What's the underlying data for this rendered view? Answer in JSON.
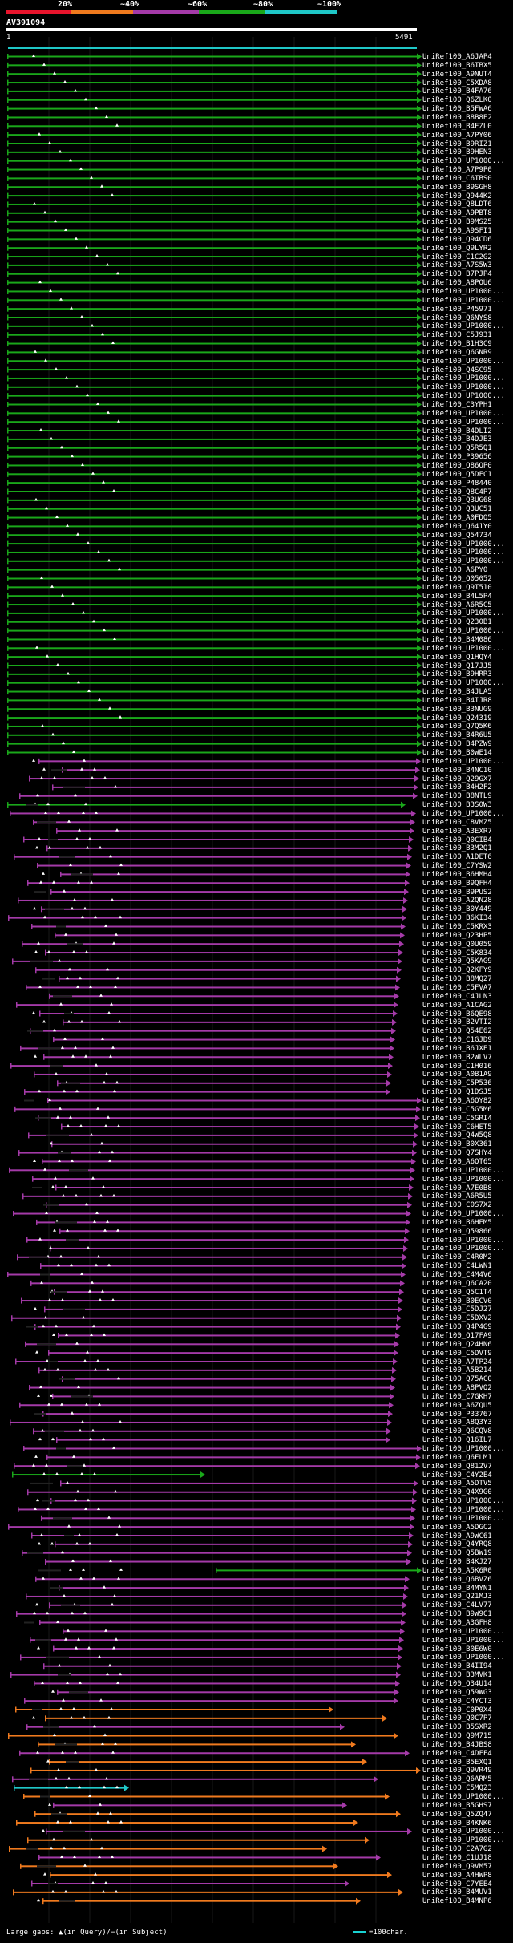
{
  "legend": {
    "labels": [
      "20%",
      "~40%",
      "~60%",
      "~80%",
      "~100%"
    ],
    "colors": [
      "#e8142c",
      "#f07a1e",
      "#a43aa8",
      "#1aa81a",
      "#1fc8c8"
    ]
  },
  "query": {
    "title": "AV391094",
    "start_label": "1",
    "end_label": "5491"
  },
  "hits": [
    "UniRef100_A6JAP4",
    "UniRef100_B6TBX5",
    "UniRef100_A9NUT4",
    "UniRef100_C5XDA8",
    "UniRef100_B4FA76",
    "UniRef100_Q6ZLK0",
    "UniRef100_B5FWA6",
    "UniRef100_B8B8E2",
    "UniRef100_B4FZL0",
    "UniRef100_A7PY06",
    "UniRef100_B9RIZ1",
    "UniRef100_B9HEN3",
    "UniRef100_UP1000...",
    "UniRef100_A7P9P0",
    "UniRef100_C6TBS0",
    "UniRef100_B9SGH8",
    "UniRef100_Q944K2",
    "UniRef100_Q8LDT6",
    "UniRef100_A9PBT8",
    "UniRef100_B9MS25",
    "UniRef100_A9SFI1",
    "UniRef100_Q94CD6",
    "UniRef100_Q9LYR2",
    "UniRef100_C1C2G2",
    "UniRef100_A7S5W3",
    "UniRef100_B7PJP4",
    "UniRef100_A8PQU6",
    "UniRef100_UP1000...",
    "UniRef100_UP1000...",
    "UniRef100_P45971",
    "UniRef100_Q6NYS8",
    "UniRef100_UP1000...",
    "UniRef100_C5J931",
    "UniRef100_B1H3C9",
    "UniRef100_Q6GNR9",
    "UniRef100_UP1000...",
    "UniRef100_Q4SC95",
    "UniRef100_UP1000...",
    "UniRef100_UP1000...",
    "UniRef100_UP1000...",
    "UniRef100_C3YPH1",
    "UniRef100_UP1000...",
    "UniRef100_UP1000...",
    "UniRef100_B4DLI2",
    "UniRef100_B4DJE3",
    "UniRef100_Q5R5Q1",
    "UniRef100_P39656",
    "UniRef100_Q86QP0",
    "UniRef100_Q5DFC1",
    "UniRef100_P48440",
    "UniRef100_Q8C4P7",
    "UniRef100_Q3UG68",
    "UniRef100_Q3UC51",
    "UniRef100_A0FDQ5",
    "UniRef100_Q641Y0",
    "UniRef100_Q54734",
    "UniRef100_UP1000...",
    "UniRef100_UP1000...",
    "UniRef100_UP1000...",
    "UniRef100_A6PY0",
    "UniRef100_Q05052",
    "UniRef100_Q9T510",
    "UniRef100_B4L5P4",
    "UniRef100_A6R5C5",
    "UniRef100_UP1000...",
    "UniRef100_Q230B1",
    "UniRef100_UP1000...",
    "UniRef100_B4M086",
    "UniRef100_UP1000...",
    "UniRef100_Q1HQY4",
    "UniRef100_Q17JJ5",
    "UniRef100_B9HRR3",
    "UniRef100_UP1000...",
    "UniRef100_B4JLA5",
    "UniRef100_B4IJR8",
    "UniRef100_B3NUG9",
    "UniRef100_Q24319",
    "UniRef100_Q7Q5K6",
    "UniRef100_B4R6U5",
    "UniRef100_B4PZW9",
    "UniRef100_B0WE14",
    "UniRef100_UP1000...",
    "UniRef100_B4NC10",
    "UniRef100_Q29GX7",
    "UniRef100_B4H2F2",
    "UniRef100_B8NTL9",
    "UniRef100_B3S0W3",
    "UniRef100_UP1000...",
    "UniRef100_C8VMZ5",
    "UniRef100_A3EXR7",
    "UniRef100_Q0CIB4",
    "UniRef100_B3M2Q1",
    "UniRef100_A1DET6",
    "UniRef100_C7YSW2",
    "UniRef100_B6HMH4",
    "UniRef100_B9QFH4",
    "UniRef100_B9PUS2",
    "UniRef100_A2QN28",
    "UniRef100_B0Y449",
    "UniRef100_B6KI34",
    "UniRef100_C5KRX3",
    "UniRef100_Q23HP5",
    "UniRef100_Q0U059",
    "UniRef100_C5K834",
    "UniRef100_Q5KAG9",
    "UniRef100_Q2KFY9",
    "UniRef100_B8MQ27",
    "UniRef100_C5FVA7",
    "UniRef100_C4JLN3",
    "UniRef100_A1CAG2",
    "UniRef100_B6QE98",
    "UniRef100_B2VTI2",
    "UniRef100_Q54E62",
    "UniRef100_C1GJD9",
    "UniRef100_B6JXE1",
    "UniRef100_B2WLV7",
    "UniRef100_C1H016",
    "UniRef100_A0B1A9",
    "UniRef100_C5P536",
    "UniRef100_Q1DSJ5",
    "UniRef100_A6QY82",
    "UniRef100_C5G5M6",
    "UniRef100_C5GRI4",
    "UniRef100_C6HET5",
    "UniRef100_Q4W5Q8",
    "UniRef100_B0X361",
    "UniRef100_Q7SHY4",
    "UniRef100_A6QT65",
    "UniRef100_UP1000...",
    "UniRef100_UP1000...",
    "UniRef100_A7E0B8",
    "UniRef100_A6R5U5",
    "UniRef100_C0S7X2",
    "UniRef100_UP1000...",
    "UniRef100_B6HEM5",
    "UniRef100_Q59866",
    "UniRef100_UP1000...",
    "UniRef100_UP1000...",
    "UniRef100_C4R0M2",
    "UniRef100_C4LWN1",
    "UniRef100_C4M4V6",
    "UniRef100_Q6CA20",
    "UniRef100_Q5C1T4",
    "UniRef100_B0ECV0",
    "UniRef100_C5DJ27",
    "UniRef100_C5DXV2",
    "UniRef100_Q4P4G9",
    "UniRef100_Q17FA9",
    "UniRef100_Q24HN6",
    "UniRef100_C5DVT9",
    "UniRef100_A7TP24",
    "UniRef100_A5B214",
    "UniRef100_Q75AC0",
    "UniRef100_A8PVQ2",
    "UniRef100_C7GKH7",
    "UniRef100_A6ZQU5",
    "UniRef100_P33767",
    "UniRef100_A8Q3Y3",
    "UniRef100_Q6CQV8",
    "UniRef100_Q16IL7",
    "UniRef100_UP1000...",
    "UniRef100_Q6FLM1",
    "UniRef100_Q812V7",
    "UniRef100_C4Y2E4",
    "UniRef100_A5DTV5",
    "UniRef100_Q4X9G0",
    "UniRef100_UP1000...",
    "UniRef100_UP1000...",
    "UniRef100_UP1000...",
    "UniRef100_A5DGC2",
    "UniRef100_A9WC61",
    "UniRef100_Q4YRQ8",
    "UniRef100_Q5BW19",
    "UniRef100_B4KJ27",
    "UniRef100_A5K6R0",
    "UniRef100_Q6BVZ6",
    "UniRef100_B4MYN1",
    "UniRef100_Q21MJ3",
    "UniRef100_C4LV77",
    "UniRef100_B9W9C1",
    "UniRef100_A3GFH8",
    "UniRef100_UP1000...",
    "UniRef100_UP1000...",
    "UniRef100_B0E6W0",
    "UniRef100_UP1000...",
    "UniRef100_B4II94",
    "UniRef100_B3MVK1",
    "UniRef100_Q34U14",
    "UniRef100_Q59WG3",
    "UniRef100_C4YCT3",
    "UniRef100_C0P0X4",
    "UniRef100_Q0C7P7",
    "UniRef100_B5SXR2",
    "UniRef100_Q9M715",
    "UniRef100_B4JBS8",
    "UniRef100_C4DFF4",
    "UniRef100_B5EXQ1",
    "UniRef100_Q9VR49",
    "UniRef100_Q6ARM5",
    "UniRef100_C5MQ23",
    "UniRef100_UP1000...",
    "UniRef100_B5GHS7",
    "UniRef100_Q5ZQ47",
    "UniRef100_B4KNK6",
    "UniRef100_UP1000...",
    "UniRef100_UP1000...",
    "UniRef100_C2A7G2",
    "UniRef100_C1UJ18",
    "UniRef100_Q9VM57",
    "UniRef100_A4HWP8",
    "UniRef100_C7YEE4",
    "UniRef100_B4MUV1",
    "UniRef100_B4MNP6"
  ],
  "footer": {
    "large_gaps_label": "Large gaps: ▲(in Query)/−(in Subject)",
    "scale_key": "=100char."
  }
}
